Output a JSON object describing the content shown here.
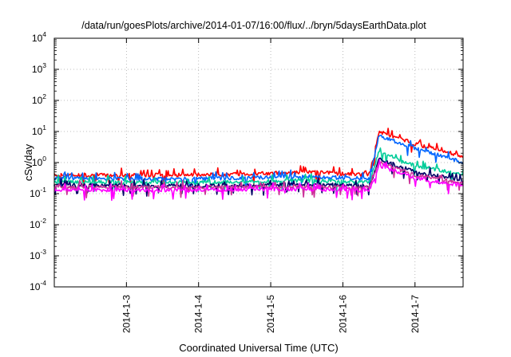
{
  "chart_data": {
    "type": "line",
    "title": "/data/run/goesPlots/archive/2014-01-07/16:00/flux/../bryn/5daysEarthData.plot",
    "xlabel": "Coordinated Universal Time (UTC)",
    "ylabel": "cSv/day",
    "y_scale": "log",
    "ylim": [
      0.0001,
      10000
    ],
    "xlim": [
      "2014-01-02T00:00",
      "2014-01-07T16:00"
    ],
    "y_ticks": [
      {
        "base": "10",
        "exp": "-4"
      },
      {
        "base": "10",
        "exp": "-3"
      },
      {
        "base": "10",
        "exp": "-2"
      },
      {
        "base": "10",
        "exp": "-1"
      },
      {
        "base": "10",
        "exp": "0"
      },
      {
        "base": "10",
        "exp": "1"
      },
      {
        "base": "10",
        "exp": "2"
      },
      {
        "base": "10",
        "exp": "3"
      },
      {
        "base": "10",
        "exp": "4"
      }
    ],
    "x_ticks": [
      {
        "label": "2014-1-3",
        "value": "2014-01-03T00:00"
      },
      {
        "label": "2014-1-4",
        "value": "2014-01-04T00:00"
      },
      {
        "label": "2014-1-5",
        "value": "2014-01-05T00:00"
      },
      {
        "label": "2014-1-6",
        "value": "2014-01-06T00:00"
      },
      {
        "label": "2014-1-7",
        "value": "2014-01-07T00:00"
      }
    ],
    "grid": true,
    "legend": "none",
    "series": [
      {
        "color": "#ff0000",
        "x": [
          "2014-01-02T00:00",
          "2014-01-03T00:00",
          "2014-01-04T00:00",
          "2014-01-05T00:00",
          "2014-01-05T12:00",
          "2014-01-06T08:00",
          "2014-01-06T09:00",
          "2014-01-06T12:00",
          "2014-01-07T00:00",
          "2014-01-07T16:00"
        ],
        "values": [
          0.4,
          0.4,
          0.4,
          0.45,
          0.5,
          0.4,
          0.45,
          10,
          4,
          1.6
        ]
      },
      {
        "color": "#0066ff",
        "x": [
          "2014-01-02T00:00",
          "2014-01-03T00:00",
          "2014-01-04T00:00",
          "2014-01-05T00:00",
          "2014-01-05T12:00",
          "2014-01-06T08:00",
          "2014-01-06T09:00",
          "2014-01-06T12:00",
          "2014-01-07T00:00",
          "2014-01-07T16:00"
        ],
        "values": [
          0.32,
          0.3,
          0.3,
          0.33,
          0.36,
          0.3,
          0.33,
          7,
          3,
          1.0
        ]
      },
      {
        "color": "#00cc99",
        "x": [
          "2014-01-02T00:00",
          "2014-01-03T00:00",
          "2014-01-04T00:00",
          "2014-01-05T00:00",
          "2014-01-05T12:00",
          "2014-01-06T08:00",
          "2014-01-06T09:00",
          "2014-01-06T12:00",
          "2014-01-07T00:00",
          "2014-01-07T16:00"
        ],
        "values": [
          0.24,
          0.23,
          0.23,
          0.25,
          0.27,
          0.23,
          0.25,
          2.2,
          0.8,
          0.4
        ]
      },
      {
        "color": "#000066",
        "x": [
          "2014-01-02T00:00",
          "2014-01-03T00:00",
          "2014-01-04T00:00",
          "2014-01-05T00:00",
          "2014-01-05T12:00",
          "2014-01-06T08:00",
          "2014-01-06T09:00",
          "2014-01-06T12:00",
          "2014-01-07T00:00",
          "2014-01-07T16:00"
        ],
        "values": [
          0.19,
          0.18,
          0.18,
          0.19,
          0.2,
          0.18,
          0.19,
          1.3,
          0.5,
          0.28
        ]
      },
      {
        "color": "#cc3399",
        "x": [
          "2014-01-02T00:00",
          "2014-01-03T00:00",
          "2014-01-04T00:00",
          "2014-01-05T00:00",
          "2014-01-05T12:00",
          "2014-01-06T08:00",
          "2014-01-06T09:00",
          "2014-01-06T12:00",
          "2014-01-07T00:00",
          "2014-01-07T16:00"
        ],
        "values": [
          0.16,
          0.16,
          0.16,
          0.17,
          0.17,
          0.16,
          0.17,
          1.0,
          0.4,
          0.22
        ]
      },
      {
        "color": "#ff00ff",
        "x": [
          "2014-01-02T00:00",
          "2014-01-03T00:00",
          "2014-01-04T00:00",
          "2014-01-05T00:00",
          "2014-01-05T12:00",
          "2014-01-06T08:00",
          "2014-01-06T09:00",
          "2014-01-06T12:00",
          "2014-01-07T00:00",
          "2014-01-07T16:00"
        ],
        "values": [
          0.13,
          0.13,
          0.13,
          0.14,
          0.14,
          0.13,
          0.14,
          0.8,
          0.32,
          0.18
        ]
      }
    ]
  }
}
